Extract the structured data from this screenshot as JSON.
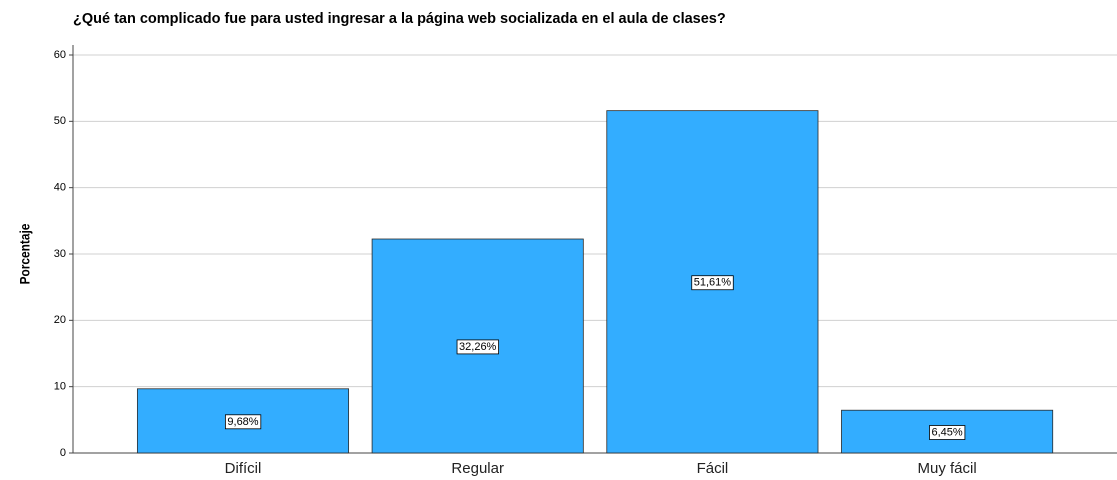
{
  "chart_data": {
    "type": "bar",
    "title": "¿Qué tan complicado fue para usted ingresar a la página web socializada en el aula de clases?",
    "y_label": "Porcentaje",
    "categories": [
      "Difícil",
      "Regular",
      "Fácil",
      "Muy fácil"
    ],
    "values": [
      9.68,
      32.26,
      51.61,
      6.45
    ],
    "value_labels": [
      "9,68%",
      "32,26%",
      "51,61%",
      "6,45%"
    ],
    "color": "#33adff",
    "ylim": [
      0,
      60
    ],
    "yticks": [
      0,
      10,
      20,
      30,
      40,
      50,
      60
    ],
    "grid": true
  }
}
